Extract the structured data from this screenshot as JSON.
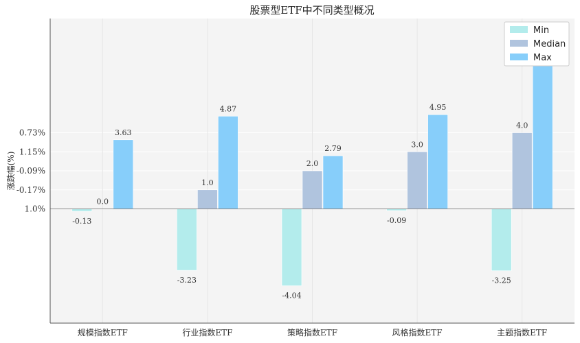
{
  "chart_data": {
    "type": "bar",
    "title": "股票型ETF中不同类型概况",
    "xlabel": "",
    "ylabel": "涨跌幅(%)",
    "categories": [
      "规模指数ETF",
      "行业指数ETF",
      "策略指数ETF",
      "风格指数ETF",
      "主题指数ETF"
    ],
    "series": [
      {
        "name": "Min",
        "color": "#b3ecec",
        "values": [
          -0.13,
          -3.23,
          -4.04,
          -0.09,
          -3.25
        ],
        "labels": [
          "-0.13",
          "-3.23",
          "-4.04",
          "-0.09",
          "-3.25"
        ]
      },
      {
        "name": "Median",
        "color": "#b0c4de",
        "values": [
          0.0,
          1.0,
          2.0,
          3.0,
          4.0
        ],
        "labels": [
          "0.0",
          "1.0",
          "2.0",
          "3.0",
          "4.0"
        ]
      },
      {
        "name": "Max",
        "color": "#87cefa",
        "values": [
          3.63,
          4.87,
          2.79,
          4.95,
          8.2
        ],
        "labels": [
          "3.63",
          "4.87",
          "2.79",
          "4.95",
          ""
        ]
      }
    ],
    "ylim": [
      -6,
      10
    ],
    "yticks": [
      {
        "value": 0,
        "label": "1.0%"
      },
      {
        "value": 1,
        "label": "-0.17%"
      },
      {
        "value": 2,
        "label": "-0.09%"
      },
      {
        "value": 3,
        "label": "1.15%"
      },
      {
        "value": 4,
        "label": "0.73%"
      }
    ],
    "grid": true,
    "legend_position": "top-right"
  }
}
